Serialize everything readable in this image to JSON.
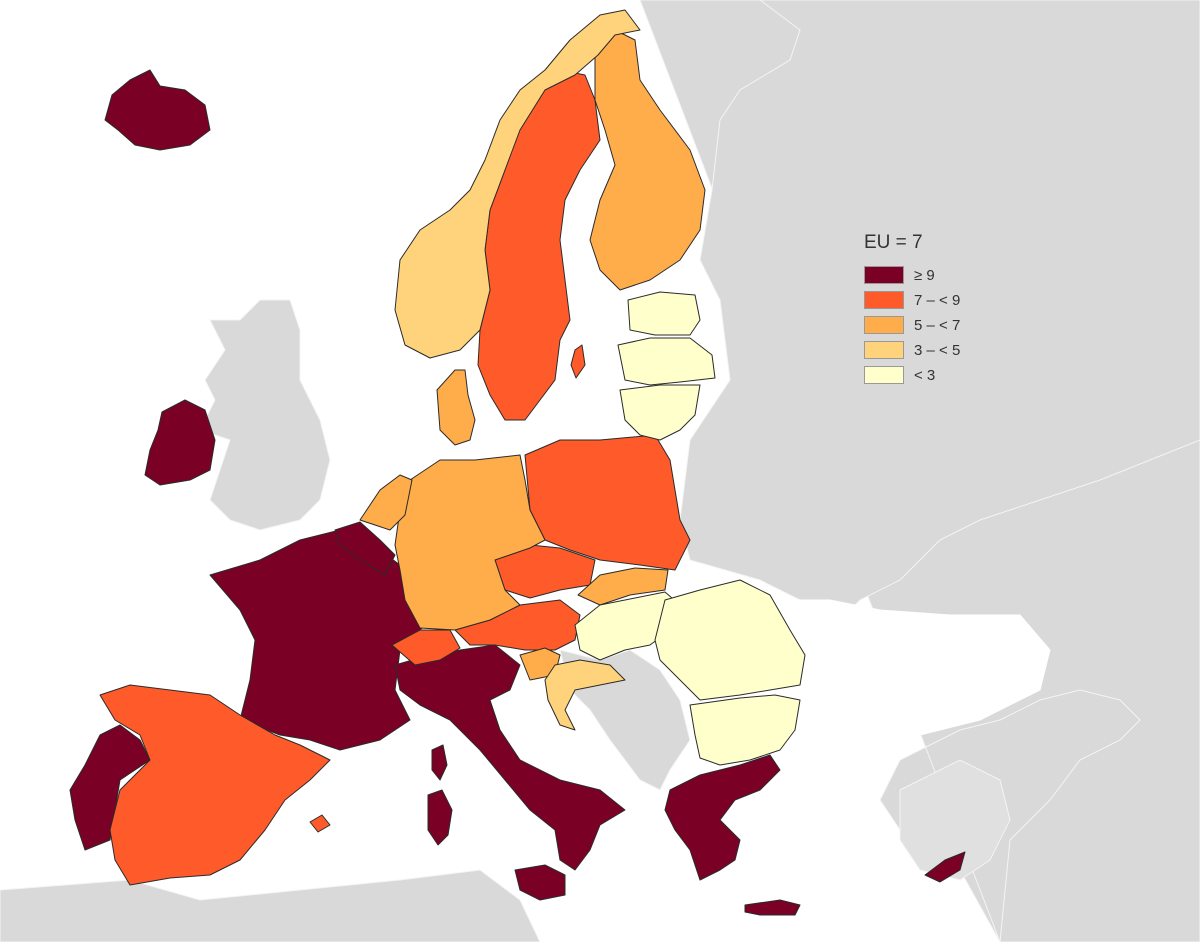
{
  "legend": {
    "title": "EU = 7",
    "classes": [
      {
        "label": "≥ 9",
        "color": "#7a0026"
      },
      {
        "label": "7 – < 9",
        "color": "#ff5a2a"
      },
      {
        "label": "5 – < 7",
        "color": "#ffad4b"
      },
      {
        "label": "3 – < 5",
        "color": "#ffd37b"
      },
      {
        "label": "< 3",
        "color": "#ffffcc"
      }
    ]
  },
  "colors": {
    "non_member": "#d9d9d9",
    "sea": "#ffffff",
    "border": "#2b2b2b"
  }
}
